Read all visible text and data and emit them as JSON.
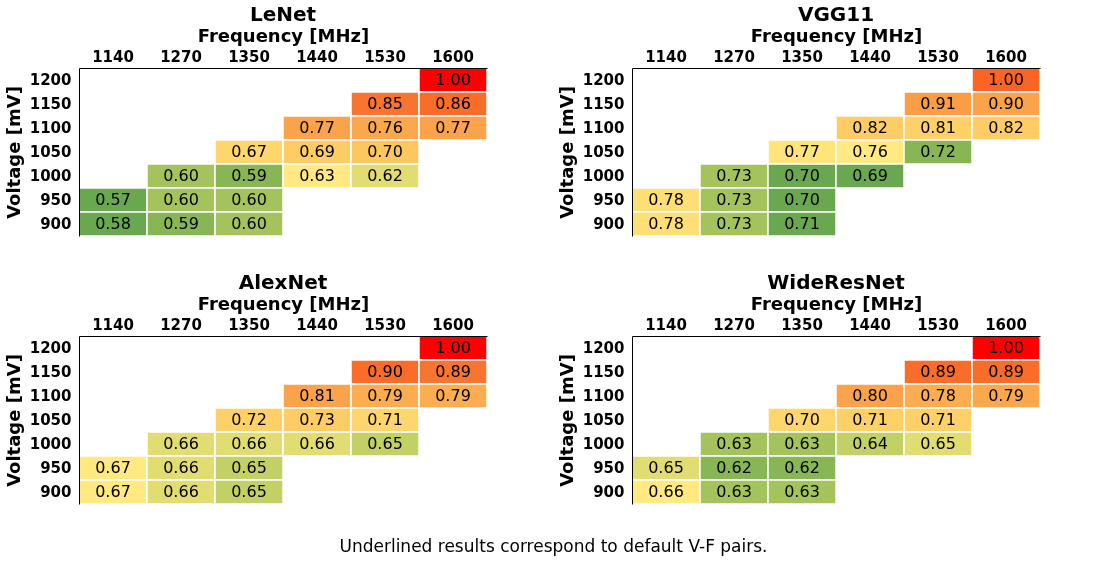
{
  "chart_data": [
    {
      "type": "heatmap",
      "title": "LeNet",
      "xlabel": "Frequency [MHz]",
      "ylabel": "Voltage [mV]",
      "categories": [
        "1140",
        "1270",
        "1350",
        "1440",
        "1530",
        "1600"
      ],
      "y_categories": [
        "1200",
        "1150",
        "1100",
        "1050",
        "1000",
        "950",
        "900"
      ],
      "cells": [
        [
          null,
          null,
          null,
          null,
          null,
          1.0
        ],
        [
          null,
          null,
          null,
          null,
          0.85,
          0.86
        ],
        [
          null,
          null,
          null,
          0.77,
          0.76,
          0.77
        ],
        [
          null,
          null,
          0.67,
          0.69,
          0.7,
          null
        ],
        [
          null,
          0.6,
          0.59,
          0.63,
          0.62,
          null
        ],
        [
          0.57,
          0.6,
          0.6,
          null,
          null,
          null
        ],
        [
          0.58,
          0.59,
          0.6,
          null,
          null,
          null
        ]
      ],
      "cell_labels": [
        [
          null,
          null,
          null,
          null,
          null,
          "1.00"
        ],
        [
          null,
          null,
          null,
          null,
          "0.85",
          "0.86"
        ],
        [
          null,
          null,
          null,
          "0.77",
          "0.76",
          "0.77"
        ],
        [
          null,
          null,
          "0.67",
          "0.69",
          "0.70",
          null
        ],
        [
          null,
          "0.60",
          "0.59",
          "0.63",
          "0.62",
          null
        ],
        [
          "0.57",
          "0.60",
          "0.60",
          null,
          null,
          null
        ],
        [
          "0.58",
          "0.59",
          "0.60",
          null,
          null,
          null
        ]
      ]
    },
    {
      "type": "heatmap",
      "title": "VGG11",
      "xlabel": "Frequency [MHz]",
      "ylabel": "Voltage [mV]",
      "categories": [
        "1140",
        "1270",
        "1350",
        "1440",
        "1530",
        "1600"
      ],
      "y_categories": [
        "1200",
        "1150",
        "1100",
        "1050",
        "1000",
        "950",
        "900"
      ],
      "cells": [
        [
          null,
          null,
          null,
          null,
          null,
          1.0
        ],
        [
          null,
          null,
          null,
          null,
          0.91,
          0.9
        ],
        [
          null,
          null,
          null,
          0.82,
          0.81,
          0.82
        ],
        [
          null,
          null,
          0.77,
          0.76,
          0.72,
          null
        ],
        [
          null,
          0.73,
          0.7,
          0.69,
          null,
          null
        ],
        [
          0.78,
          0.73,
          0.7,
          null,
          null,
          null
        ],
        [
          0.78,
          0.73,
          0.71,
          null,
          null,
          null
        ]
      ],
      "cell_labels": [
        [
          null,
          null,
          null,
          null,
          null,
          "1.00"
        ],
        [
          null,
          null,
          null,
          null,
          "0.91",
          "0.90"
        ],
        [
          null,
          null,
          null,
          "0.82",
          "0.81",
          "0.82"
        ],
        [
          null,
          null,
          "0.77",
          "0.76",
          "0.72",
          null
        ],
        [
          null,
          "0.73",
          "0.70",
          "0.69",
          null,
          null
        ],
        [
          "0.78",
          "0.73",
          "0.70",
          null,
          null,
          null
        ],
        [
          "0.78",
          "0.73",
          "0.71",
          null,
          null,
          null
        ]
      ]
    },
    {
      "type": "heatmap",
      "title": "AlexNet",
      "xlabel": "Frequency [MHz]",
      "ylabel": "Voltage [mV]",
      "categories": [
        "1140",
        "1270",
        "1350",
        "1440",
        "1530",
        "1600"
      ],
      "y_categories": [
        "1200",
        "1150",
        "1100",
        "1050",
        "1000",
        "950",
        "900"
      ],
      "cells": [
        [
          null,
          null,
          null,
          null,
          null,
          1.0
        ],
        [
          null,
          null,
          null,
          null,
          0.9,
          0.89
        ],
        [
          null,
          null,
          null,
          0.81,
          0.79,
          0.79
        ],
        [
          null,
          null,
          0.72,
          0.73,
          0.71,
          null
        ],
        [
          null,
          0.66,
          0.66,
          0.66,
          0.65,
          null
        ],
        [
          0.67,
          0.66,
          0.65,
          null,
          null,
          null
        ],
        [
          0.67,
          0.66,
          0.65,
          null,
          null,
          null
        ]
      ],
      "cell_labels": [
        [
          null,
          null,
          null,
          null,
          null,
          "1.00"
        ],
        [
          null,
          null,
          null,
          null,
          "0.90",
          "0.89"
        ],
        [
          null,
          null,
          null,
          "0.81",
          "0.79",
          "0.79"
        ],
        [
          null,
          null,
          "0.72",
          "0.73",
          "0.71",
          null
        ],
        [
          null,
          "0.66",
          "0.66",
          "0.66",
          "0.65",
          null
        ],
        [
          "0.67",
          "0.66",
          "0.65",
          null,
          null,
          null
        ],
        [
          "0.67",
          "0.66",
          "0.65",
          null,
          null,
          null
        ]
      ]
    },
    {
      "type": "heatmap",
      "title": "WideResNet",
      "xlabel": "Frequency [MHz]",
      "ylabel": "Voltage [mV]",
      "categories": [
        "1140",
        "1270",
        "1350",
        "1440",
        "1530",
        "1600"
      ],
      "y_categories": [
        "1200",
        "1150",
        "1100",
        "1050",
        "1000",
        "950",
        "900"
      ],
      "cells": [
        [
          null,
          null,
          null,
          null,
          null,
          1.0
        ],
        [
          null,
          null,
          null,
          null,
          0.89,
          0.89
        ],
        [
          null,
          null,
          null,
          0.8,
          0.78,
          0.79
        ],
        [
          null,
          null,
          0.7,
          0.71,
          0.71,
          null
        ],
        [
          null,
          0.63,
          0.63,
          0.64,
          0.65,
          null
        ],
        [
          0.65,
          0.62,
          0.62,
          null,
          null,
          null
        ],
        [
          0.66,
          0.63,
          0.63,
          null,
          null,
          null
        ]
      ],
      "cell_labels": [
        [
          null,
          null,
          null,
          null,
          null,
          "1.00"
        ],
        [
          null,
          null,
          null,
          null,
          "0.89",
          "0.89"
        ],
        [
          null,
          null,
          null,
          "0.80",
          "0.78",
          "0.79"
        ],
        [
          null,
          null,
          "0.70",
          "0.71",
          "0.71",
          null
        ],
        [
          null,
          "0.63",
          "0.63",
          "0.64",
          "0.65",
          null
        ],
        [
          "0.65",
          "0.62",
          "0.62",
          null,
          null,
          null
        ],
        [
          "0.66",
          "0.63",
          "0.63",
          null,
          null,
          null
        ]
      ],
      "annotations": [
        "Underlined results correspond to default V-F pairs."
      ]
    }
  ]
}
